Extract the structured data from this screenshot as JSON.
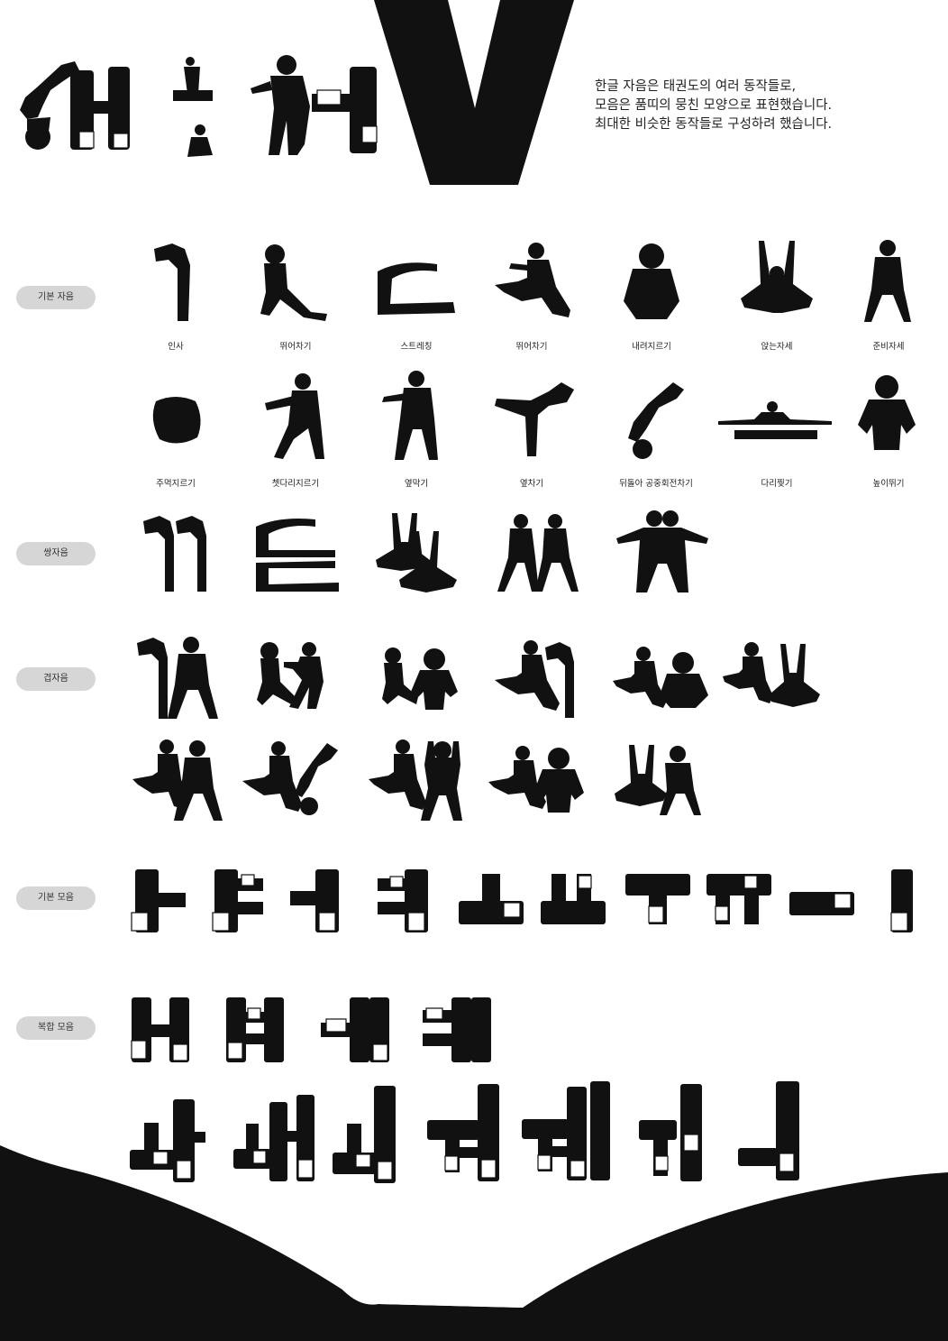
{
  "intro": {
    "line1": "한글 자음은 태권도의 여러 동작들로,",
    "line2": "모음은 품띠의 뭉친 모양으로 표현했습니다.",
    "line3": "최대한 비슷한 동작들로 구성하려 했습니다."
  },
  "sections": {
    "basic_consonants": "기본 자음",
    "double_consonants": "쌍자음",
    "compound_consonants": "겹자음",
    "basic_vowels": "기본 모음",
    "compound_vowels": "복합 모음"
  },
  "consonant_captions": [
    "인사",
    "뛰어차기",
    "스트레칭",
    "뛰어차기",
    "내려지르기",
    "앉는자세",
    "준비자세",
    "주먹지르기",
    "쳇다리지르기",
    "옆막기",
    "옆차기",
    "뒤돌아 공중회전차기",
    "다리찢기",
    "높이뛰기"
  ],
  "colors": {
    "ink": "#111111",
    "pill": "#d6d6d6",
    "paper": "#ffffff"
  }
}
